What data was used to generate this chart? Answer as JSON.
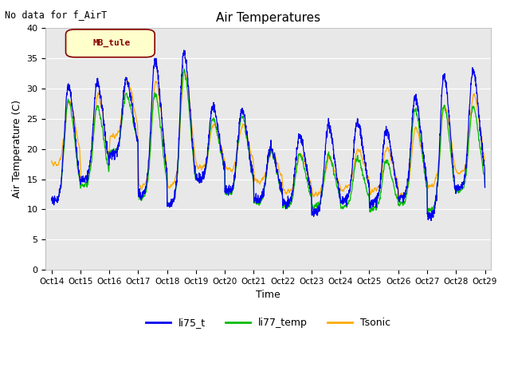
{
  "title": "Air Temperatures",
  "ylabel": "Air Temperature (C)",
  "xlabel": "Time",
  "note": "No data for f_AirT",
  "legend_label": "MB_tule",
  "ylim": [
    0,
    40
  ],
  "yticks": [
    0,
    5,
    10,
    15,
    20,
    25,
    30,
    35,
    40
  ],
  "xtick_labels": [
    "Oct 14",
    "Oct 15",
    "Oct 16",
    "Oct 17",
    "Oct 18",
    "Oct 19",
    "Oct 20",
    "Oct 21",
    "Oct 22",
    "Oct 23",
    "Oct 24",
    "Oct 25",
    "Oct 26",
    "Oct 27",
    "Oct 28",
    "Oct 29"
  ],
  "line_colors": {
    "li75_t": "#0000ee",
    "li77_temp": "#00bb00",
    "Tsonic": "#ffaa00"
  },
  "background_color": "#e8e8e8",
  "plot_bg_color": "#e8e8e8",
  "title_fontsize": 11,
  "axis_label_fontsize": 9,
  "tick_fontsize": 8,
  "legend_box_facecolor": "#ffffcc",
  "legend_box_edgecolor": "#880000",
  "legend_text_color": "#880000"
}
